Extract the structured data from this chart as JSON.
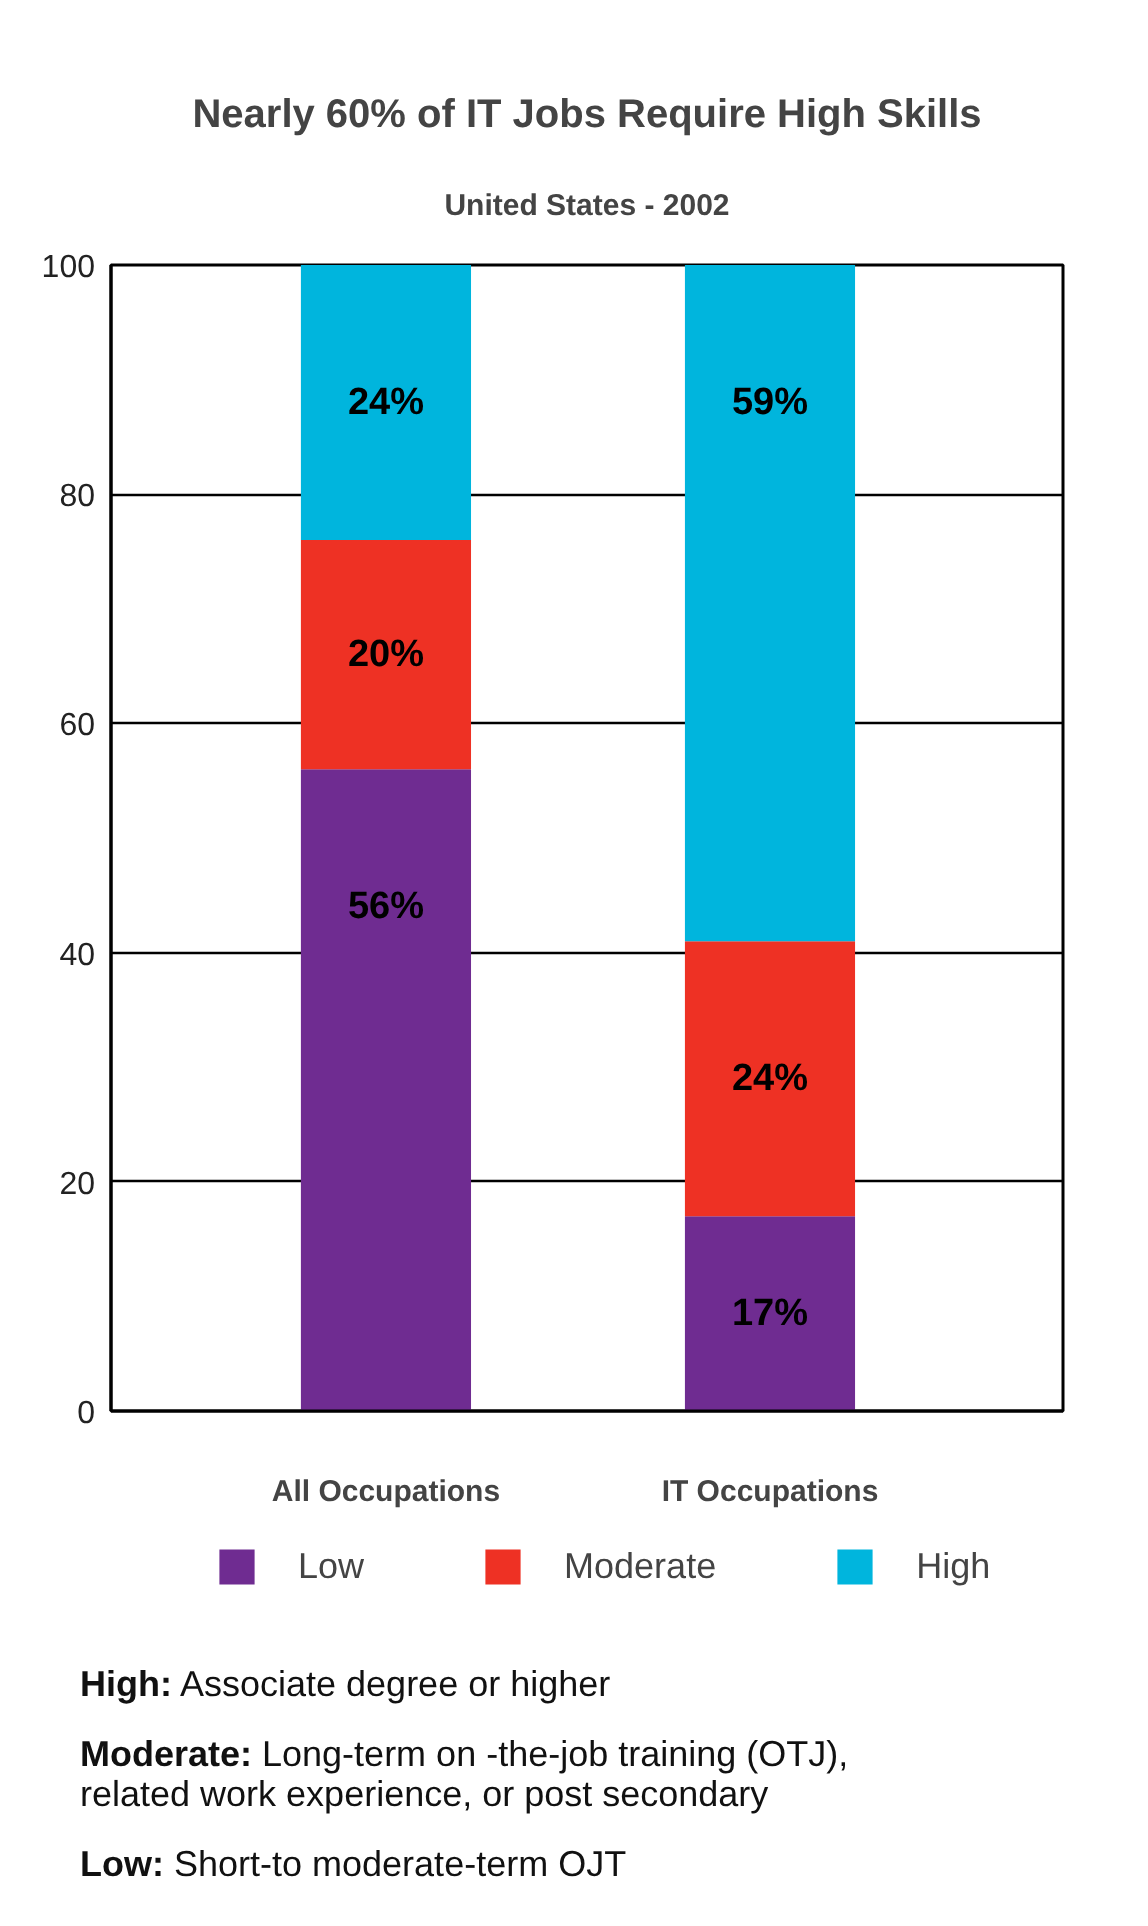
{
  "chart_data": {
    "type": "bar",
    "title": "Nearly 60% of IT Jobs Require High Skills",
    "subtitle": "United States - 2002",
    "categories": [
      "All Occupations",
      "IT Occupations"
    ],
    "series": [
      {
        "name": "Low",
        "color": "#6f2c91",
        "values": [
          56,
          17
        ],
        "value_labels": [
          "56%",
          "17%"
        ]
      },
      {
        "name": "Moderate",
        "color": "#ee3124",
        "values": [
          20,
          24
        ],
        "value_labels": [
          "20%",
          "24%"
        ]
      },
      {
        "name": "High",
        "color": "#00b5dd",
        "values": [
          24,
          59
        ],
        "value_labels": [
          "24%",
          "59%"
        ]
      }
    ],
    "stacked": true,
    "ylim": [
      0,
      100
    ],
    "yticks": [
      0,
      20,
      40,
      60,
      80,
      100
    ],
    "grid": "y",
    "legend": "bottom",
    "annotations": [
      "High: Associate degree or higher",
      "Moderate: Long-term on -the-job training (OTJ), related work experience, or post secondary",
      "Low: Short-to moderate-term OJT"
    ]
  }
}
